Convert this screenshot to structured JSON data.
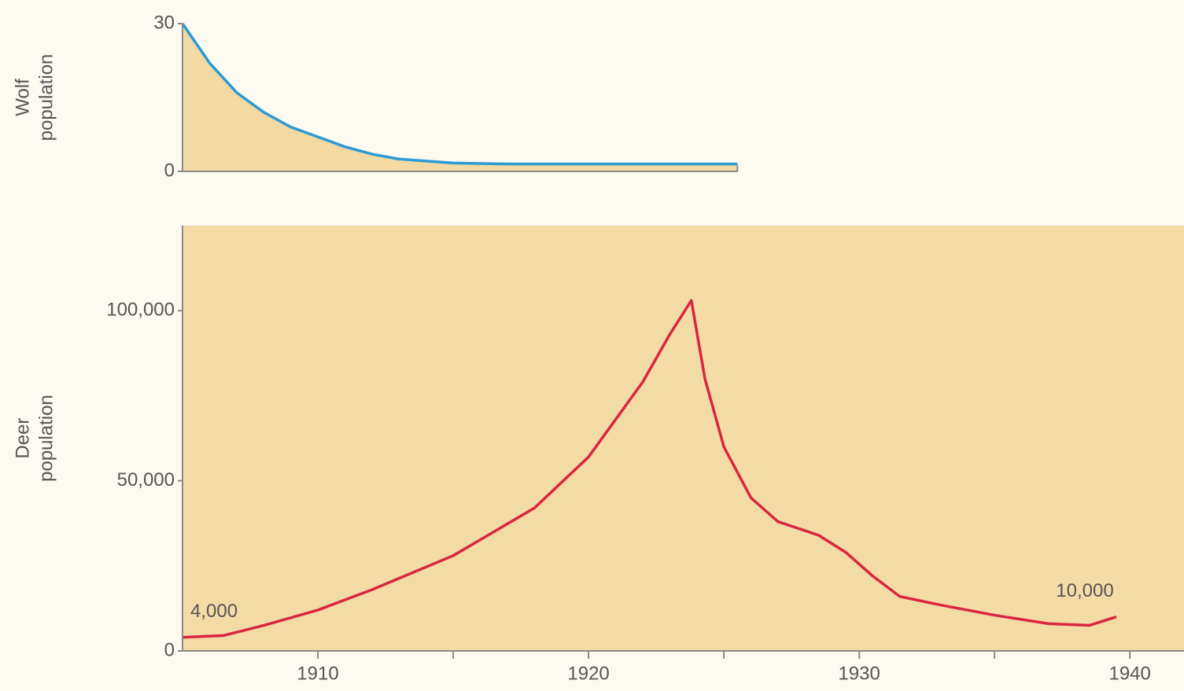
{
  "chart_data": [
    {
      "type": "area",
      "ylabel": [
        "Wolf",
        "population"
      ],
      "x": [
        1905,
        1906,
        1907,
        1908,
        1909,
        1910,
        1911,
        1912,
        1913,
        1915,
        1917,
        1920,
        1925.5
      ],
      "values": [
        30,
        22,
        16,
        12,
        9,
        7,
        5,
        3.5,
        2.5,
        1.7,
        1.5,
        1.5,
        1.5
      ],
      "color": "#2a9bd3",
      "fill_color": "#f3d9a2",
      "xlim": [
        1905,
        1942
      ],
      "ylim": [
        0,
        30
      ],
      "yticks": [
        0,
        30
      ]
    },
    {
      "type": "line",
      "ylabel": [
        "Deer",
        "population"
      ],
      "x": [
        1905,
        1906.5,
        1908,
        1910,
        1912,
        1915,
        1918,
        1920,
        1922,
        1923,
        1923.8,
        1924.3,
        1925,
        1926,
        1927,
        1928.5,
        1929.5,
        1930.5,
        1931.5,
        1933,
        1935,
        1937,
        1938.5,
        1939.5
      ],
      "values": [
        4000,
        4500,
        7500,
        12000,
        18000,
        28000,
        42000,
        57000,
        79000,
        93000,
        103000,
        80000,
        60000,
        45000,
        38000,
        34000,
        29000,
        22000,
        16000,
        13500,
        10500,
        8000,
        7500,
        10000
      ],
      "value_labels": [
        "4,000",
        null,
        null,
        null,
        null,
        null,
        null,
        null,
        null,
        null,
        null,
        null,
        null,
        null,
        null,
        null,
        null,
        null,
        null,
        null,
        null,
        null,
        null,
        "10,000"
      ],
      "color": "#d9263f",
      "fill_color": "#f3dba6",
      "xlim": [
        1905,
        1942
      ],
      "ylim": [
        0,
        125000
      ],
      "yticks": [
        0,
        {
          "value": 50000,
          "label": "50,000"
        },
        {
          "value": 100000,
          "label": "100,000"
        }
      ],
      "xticks": [
        1910,
        1920,
        1930,
        1940
      ],
      "xminorticks": [
        1915,
        1925,
        1935
      ]
    }
  ]
}
